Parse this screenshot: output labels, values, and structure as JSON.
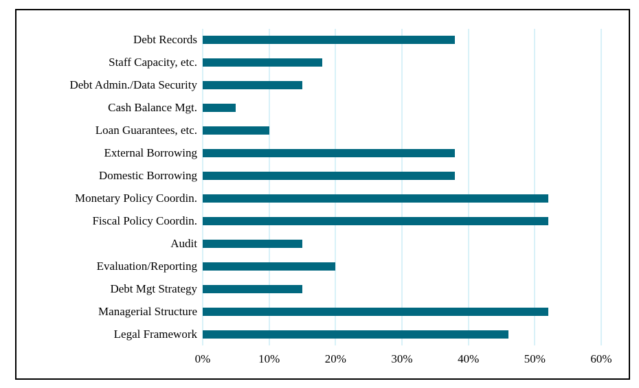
{
  "chart_data": {
    "type": "bar",
    "orientation": "horizontal",
    "title": "",
    "xlabel": "",
    "ylabel": "",
    "categories": [
      "Debt Records",
      "Staff Capacity, etc.",
      "Debt Admin./Data Security",
      "Cash Balance Mgt.",
      "Loan Guarantees, etc.",
      "External Borrowing",
      "Domestic Borrowing",
      "Monetary Policy Coordin.",
      "Fiscal Policy Coordin.",
      "Audit",
      "Evaluation/Reporting",
      "Debt Mgt Strategy",
      "Managerial Structure",
      "Legal Framework"
    ],
    "values": [
      38,
      18,
      15,
      5,
      10,
      38,
      38,
      52,
      52,
      15,
      20,
      15,
      52,
      46
    ],
    "value_unit": "%",
    "xlim": [
      0,
      60
    ],
    "x_ticks": [
      "0%",
      "10%",
      "20%",
      "30%",
      "40%",
      "50%",
      "60%"
    ],
    "grid": true,
    "legend": false,
    "colors": {
      "bar": "#01687F",
      "gridline": "#D8F1F8",
      "frame": "#000000",
      "background": "#FFFFFF",
      "text": "#000000"
    }
  }
}
